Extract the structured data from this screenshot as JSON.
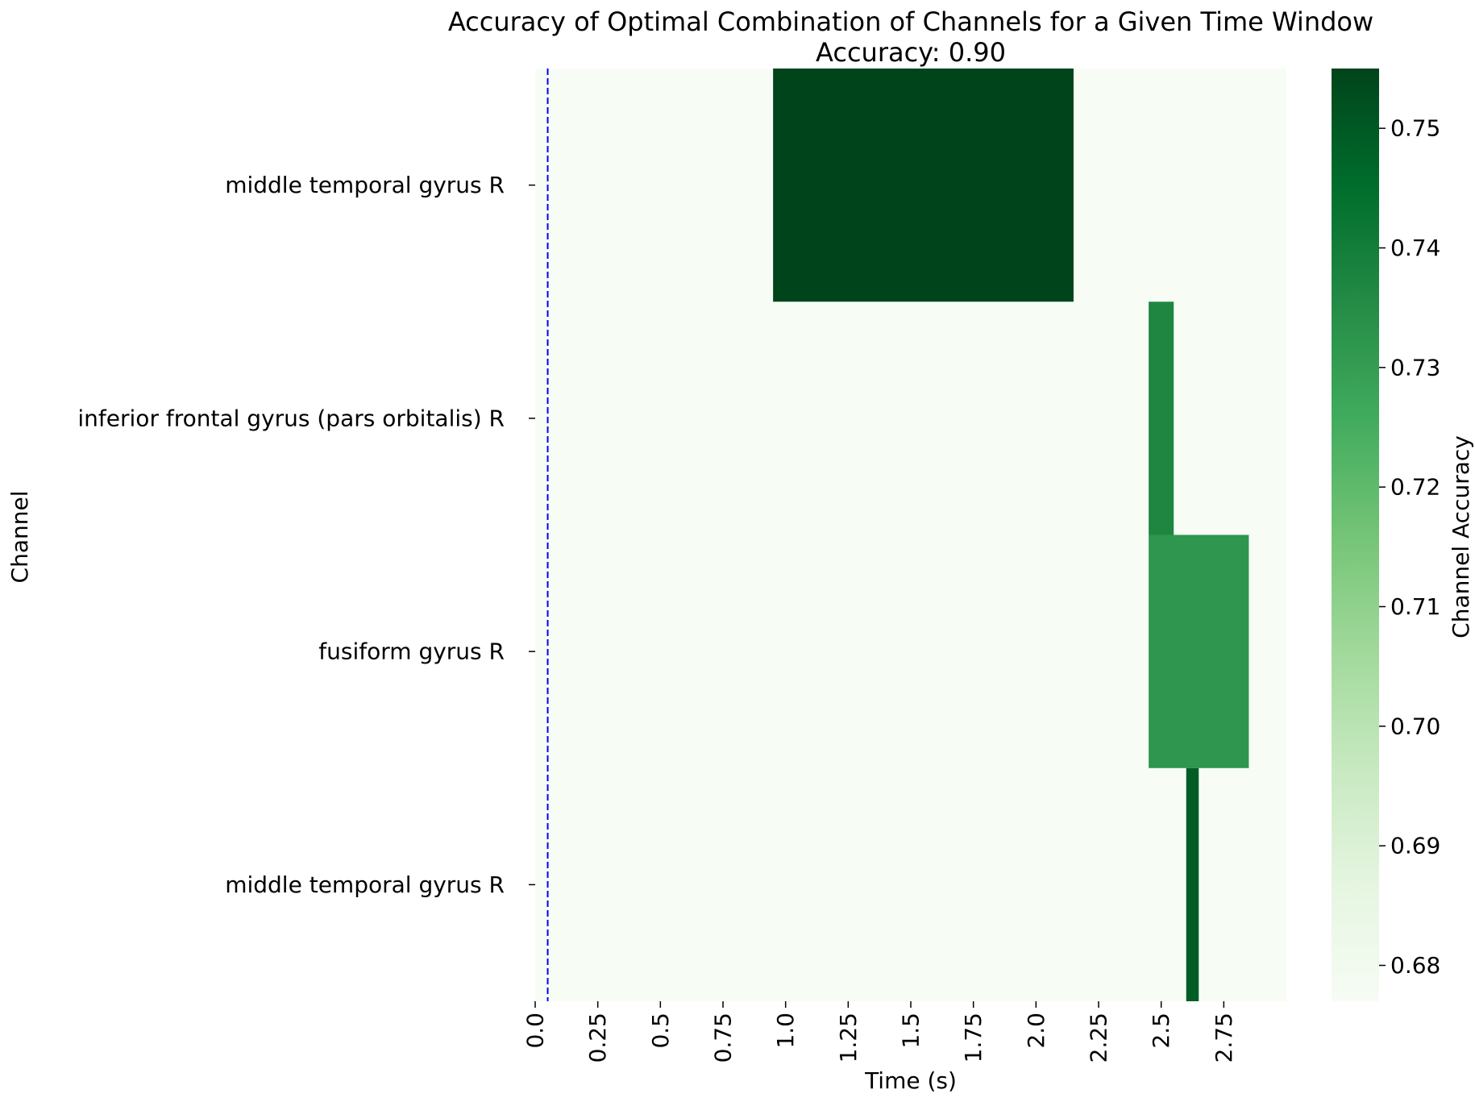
{
  "chart_data": {
    "type": "heatmap",
    "title": "Accuracy of Optimal Combination of Channels for a Given Time Window",
    "subtitle": "Accuracy: 0.90",
    "xlabel": "Time (s)",
    "ylabel": "Channel",
    "colorbar_label": "Channel Accuracy",
    "x_range": [
      0.0,
      3.0
    ],
    "x_ticks": [
      {
        "value": 0.0,
        "label": "0.0"
      },
      {
        "value": 0.25,
        "label": "0.25"
      },
      {
        "value": 0.5,
        "label": "0.5"
      },
      {
        "value": 0.75,
        "label": "0.75"
      },
      {
        "value": 1.0,
        "label": "1.0"
      },
      {
        "value": 1.25,
        "label": "1.25"
      },
      {
        "value": 1.5,
        "label": "1.5"
      },
      {
        "value": 1.75,
        "label": "1.75"
      },
      {
        "value": 2.0,
        "label": "2.0"
      },
      {
        "value": 2.25,
        "label": "2.25"
      },
      {
        "value": 2.5,
        "label": "2.5"
      },
      {
        "value": 2.75,
        "label": "2.75"
      }
    ],
    "channels": [
      "middle temporal gyrus R",
      "inferior frontal gyrus (pars orbitalis) R",
      "fusiform gyrus R",
      "middle temporal gyrus R"
    ],
    "background_value": 0.677,
    "cells": [
      {
        "row": 0,
        "x_start": 0.95,
        "x_end": 2.15,
        "value": 0.755
      },
      {
        "row": 1,
        "x_start": 2.45,
        "x_end": 2.55,
        "value": 0.737
      },
      {
        "row": 2,
        "x_start": 2.45,
        "x_end": 2.85,
        "value": 0.732
      },
      {
        "row": 3,
        "x_start": 2.6,
        "x_end": 2.65,
        "value": 0.749
      }
    ],
    "reference_line": {
      "x": 0.05,
      "color": "#0000ff",
      "style": "dashed"
    },
    "colorbar": {
      "range": [
        0.677,
        0.755
      ],
      "ticks": [
        {
          "value": 0.68,
          "label": "0.68"
        },
        {
          "value": 0.69,
          "label": "0.69"
        },
        {
          "value": 0.7,
          "label": "0.70"
        },
        {
          "value": 0.71,
          "label": "0.71"
        },
        {
          "value": 0.72,
          "label": "0.72"
        },
        {
          "value": 0.73,
          "label": "0.73"
        },
        {
          "value": 0.74,
          "label": "0.74"
        },
        {
          "value": 0.75,
          "label": "0.75"
        }
      ],
      "colormap": "Greens",
      "colors": [
        "#f7fcf5",
        "#e5f5e0",
        "#c7e9c0",
        "#a1d99b",
        "#74c476",
        "#41ab5d",
        "#238b45",
        "#006d2c",
        "#00441b"
      ]
    },
    "grid": false
  }
}
